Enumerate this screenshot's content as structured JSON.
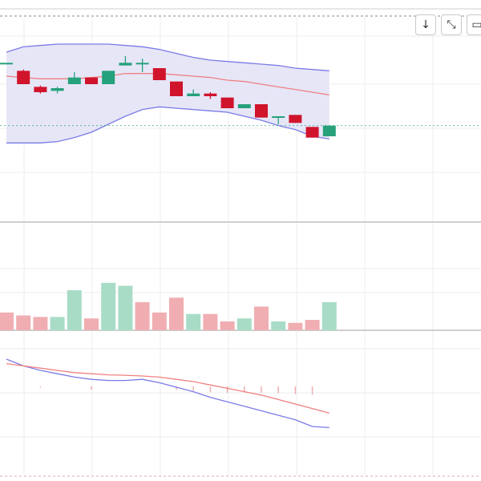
{
  "toolbar": {
    "buttons": [
      {
        "name": "download-icon",
        "glyph": "↓"
      },
      {
        "name": "collapse-icon",
        "glyph": "⤡"
      },
      {
        "name": "fullscreen-icon",
        "glyph": "▭"
      }
    ]
  },
  "colors": {
    "up": "#26a17b",
    "down": "#d0142c",
    "up_volume": "#a8dcc6",
    "down_volume": "#f0aeb2",
    "band_fill": "#e6e6f7",
    "band_line": "#7b7be8",
    "mid_line": "#f08080",
    "macd_line": "#7b7be8",
    "signal_line": "#f08080",
    "grid": "#ececec",
    "price_line": "#26a17b"
  },
  "chart_data": [
    {
      "type": "candlestick",
      "title": "",
      "candles": [
        {
          "o": 100,
          "c": 100,
          "h": 100,
          "l": 100
        },
        {
          "o": 94,
          "c": 84,
          "h": 95,
          "l": 84
        },
        {
          "o": 82,
          "c": 78,
          "h": 83,
          "l": 77
        },
        {
          "o": 79,
          "c": 81,
          "h": 82,
          "l": 77
        },
        {
          "o": 84,
          "c": 89,
          "h": 93,
          "l": 84
        },
        {
          "o": 89,
          "c": 84,
          "h": 89,
          "l": 84
        },
        {
          "o": 84,
          "c": 94,
          "h": 94,
          "l": 84
        },
        {
          "o": 98,
          "c": 100,
          "h": 105,
          "l": 98
        },
        {
          "o": 100,
          "c": 100,
          "h": 103,
          "l": 93
        },
        {
          "o": 96,
          "c": 87,
          "h": 96,
          "l": 87
        },
        {
          "o": 86,
          "c": 75,
          "h": 86,
          "l": 75
        },
        {
          "o": 75,
          "c": 77,
          "h": 80,
          "l": 75
        },
        {
          "o": 77,
          "c": 75,
          "h": 78,
          "l": 73
        },
        {
          "o": 74,
          "c": 66,
          "h": 74,
          "l": 66
        },
        {
          "o": 66,
          "c": 69,
          "h": 69,
          "l": 66
        },
        {
          "o": 69,
          "c": 59,
          "h": 69,
          "l": 59
        },
        {
          "o": 60,
          "c": 60,
          "h": 60,
          "l": 54
        },
        {
          "o": 61,
          "c": 55,
          "h": 61,
          "l": 55
        },
        {
          "o": 52,
          "c": 44,
          "h": 52,
          "l": 44
        },
        {
          "o": 45,
          "c": 53,
          "h": 53,
          "l": 45
        }
      ],
      "bollinger": {
        "upper": [
          108,
          112,
          113,
          114,
          114,
          114,
          114,
          113,
          112,
          110,
          107,
          104,
          102,
          101,
          100,
          99,
          98,
          96,
          95,
          94
        ],
        "middle": [
          90,
          89,
          88,
          88,
          88,
          89,
          90,
          92,
          92,
          92,
          91,
          90,
          89,
          87,
          86,
          84,
          82,
          80,
          78,
          76
        ],
        "lower": [
          40,
          40,
          40,
          41,
          44,
          48,
          54,
          60,
          65,
          67,
          66,
          65,
          64,
          63,
          60,
          57,
          53,
          50,
          45,
          43
        ]
      },
      "last_price_line": 53
    },
    {
      "type": "bar",
      "title": "",
      "values": [
        12,
        10,
        9,
        9,
        27,
        8,
        32,
        30,
        19,
        12,
        22,
        11,
        11,
        6,
        8,
        16,
        6,
        5,
        7,
        19
      ],
      "direction": [
        "down",
        "down",
        "down",
        "up",
        "up",
        "down",
        "up",
        "up",
        "down",
        "down",
        "down",
        "up",
        "down",
        "down",
        "up",
        "down",
        "up",
        "down",
        "down",
        "up"
      ]
    },
    {
      "type": "line",
      "title": "",
      "series": [
        {
          "values": [
            0.5,
            0.2,
            0.0,
            -0.15,
            -0.3,
            -0.4,
            -0.45,
            -0.45,
            -0.4,
            -0.55,
            -0.75,
            -0.95,
            -1.2,
            -1.4,
            -1.6,
            -1.8,
            -2.0,
            -2.2,
            -2.5,
            -2.55
          ]
        },
        {
          "values": [
            0.3,
            0.2,
            0.1,
            0.0,
            -0.1,
            -0.15,
            -0.2,
            -0.22,
            -0.25,
            -0.3,
            -0.4,
            -0.5,
            -0.65,
            -0.8,
            -0.95,
            -1.1,
            -1.3,
            -1.5,
            -1.7,
            -1.9
          ]
        }
      ],
      "histogram": [
        0.0,
        0.0,
        -0.3,
        0.0,
        0.0,
        -0.8,
        0.0,
        0.0,
        0.0,
        0.0,
        -0.9,
        -1.1,
        -1.4,
        -1.6,
        -1.5,
        -1.6,
        -1.7,
        -1.9,
        -2.1,
        0.0
      ]
    }
  ]
}
